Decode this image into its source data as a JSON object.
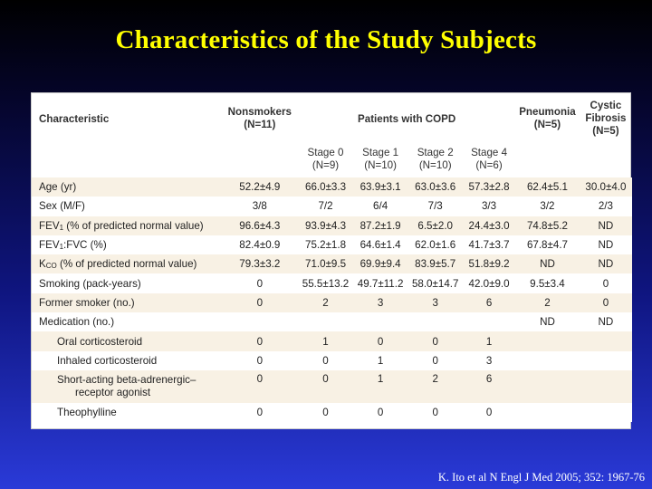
{
  "title": "Characteristics of the Study Subjects",
  "citation": "K. Ito et al N Engl J Med 2005; 352: 1967-76",
  "table": {
    "header": {
      "characteristic": "Characteristic",
      "nonsmokers": "Nonsmokers",
      "nonsmokers_n": "(N=11)",
      "copd": "Patients with COPD",
      "pneumonia": "Pneumonia",
      "pneumonia_n": "(N=5)",
      "cf_line1": "Cystic",
      "cf_line2": "Fibrosis",
      "cf_n": "(N=5)",
      "stages": [
        {
          "label": "Stage 0",
          "n": "(N=9)"
        },
        {
          "label": "Stage 1",
          "n": "(N=10)"
        },
        {
          "label": "Stage 2",
          "n": "(N=10)"
        },
        {
          "label": "Stage 4",
          "n": "(N=6)"
        }
      ]
    },
    "rows": [
      {
        "label": "Age (yr)",
        "values": [
          "52.2±4.9",
          "66.0±3.3",
          "63.9±3.1",
          "63.0±3.6",
          "57.3±2.8",
          "62.4±5.1",
          "30.0±4.0"
        ]
      },
      {
        "label": "Sex (M/F)",
        "values": [
          "3/8",
          "7/2",
          "6/4",
          "7/3",
          "3/3",
          "3/2",
          "2/3"
        ]
      },
      {
        "label_pre": "FEV",
        "label_sub": "1",
        "label_post": " (% of predicted normal value)",
        "values": [
          "96.6±4.3",
          "93.9±4.3",
          "87.2±1.9",
          "6.5±2.0",
          "24.4±3.0",
          "74.8±5.2",
          "ND"
        ]
      },
      {
        "label_pre": "FEV",
        "label_sub": "1",
        "label_post": ":FVC (%)",
        "values": [
          "82.4±0.9",
          "75.2±1.8",
          "64.6±1.4",
          "62.0±1.6",
          "41.7±3.7",
          "67.8±4.7",
          "ND"
        ]
      },
      {
        "label_pre": "K",
        "label_sub": "CO",
        "label_post": " (% of predicted normal value)",
        "values": [
          "79.3±3.2",
          "71.0±9.5",
          "69.9±9.4",
          "83.9±5.7",
          "51.8±9.2",
          "ND",
          "ND"
        ]
      },
      {
        "label": "Smoking (pack-years)",
        "values": [
          "0",
          "55.5±13.2",
          "49.7±11.2",
          "58.0±14.7",
          "42.0±9.0",
          "9.5±3.4",
          "0"
        ]
      },
      {
        "label": "Former smoker (no.)",
        "values": [
          "0",
          "2",
          "3",
          "3",
          "6",
          "2",
          "0"
        ]
      },
      {
        "label": "Medication (no.)",
        "values": [
          "",
          "",
          "",
          "",
          "",
          "ND",
          "ND"
        ]
      },
      {
        "label": "Oral corticosteroid",
        "values": [
          "0",
          "1",
          "0",
          "0",
          "1",
          "",
          ""
        ]
      },
      {
        "label": "Inhaled corticosteroid",
        "values": [
          "0",
          "0",
          "1",
          "0",
          "3",
          "",
          ""
        ]
      },
      {
        "label": "Short-acting beta-adrenergic–",
        "label2": "receptor agonist",
        "values": [
          "0",
          "0",
          "1",
          "2",
          "6",
          "",
          ""
        ]
      },
      {
        "label": "Theophylline",
        "values": [
          "0",
          "0",
          "0",
          "0",
          "0",
          "",
          ""
        ]
      }
    ]
  }
}
